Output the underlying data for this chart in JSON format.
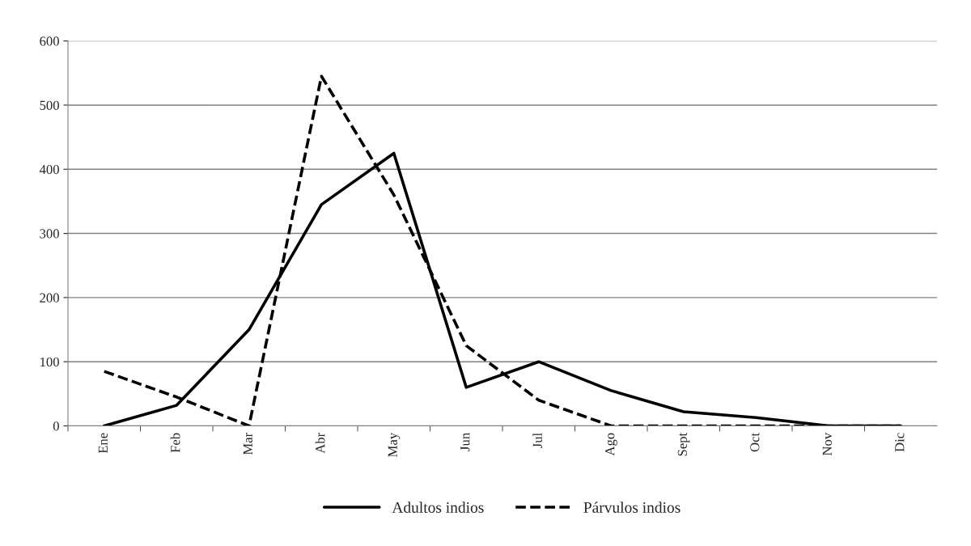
{
  "chart_data": {
    "type": "line",
    "categories": [
      "Ene",
      "Feb",
      "Mar",
      "Abr",
      "May",
      "Jun",
      "Jul",
      "Ago",
      "Sept",
      "Oct",
      "Nov",
      "Dic"
    ],
    "series": [
      {
        "name": "Adultos indios",
        "color": "#000000",
        "line_style": "solid",
        "values": [
          0,
          32,
          150,
          345,
          425,
          60,
          100,
          55,
          22,
          13,
          0,
          0
        ]
      },
      {
        "name": "Párvulos indios",
        "color": "#000000",
        "line_style": "dashed",
        "values": [
          85,
          45,
          0,
          545,
          360,
          125,
          40,
          0,
          0,
          0,
          0,
          0
        ]
      }
    ],
    "ylim": [
      0,
      600
    ],
    "yticks": [
      0,
      100,
      200,
      300,
      400,
      500,
      600
    ],
    "grid": "y",
    "legend": "bottom",
    "marker": "none"
  }
}
